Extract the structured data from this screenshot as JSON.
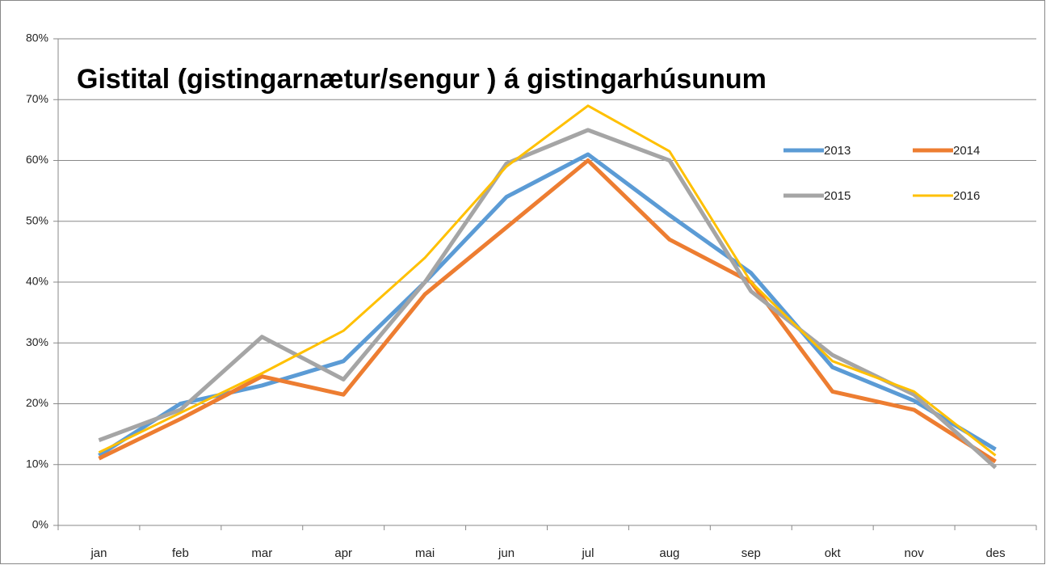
{
  "chart_data": {
    "type": "line",
    "title": "Gistital (gistingarnætur/sengur ) á gistingarhúsunum",
    "categories": [
      "jan",
      "feb",
      "mar",
      "apr",
      "mai",
      "jun",
      "jul",
      "aug",
      "sep",
      "okt",
      "nov",
      "des"
    ],
    "series": [
      {
        "name": "2013",
        "color": "#5b9bd5",
        "values": [
          11.5,
          20,
          23,
          27,
          40,
          54,
          61,
          51,
          41.5,
          26,
          20.5,
          12.5
        ]
      },
      {
        "name": "2014",
        "color": "#ed7d31",
        "values": [
          11,
          17.5,
          24.5,
          21.5,
          38,
          49,
          60,
          47,
          40,
          22,
          19,
          10.5
        ]
      },
      {
        "name": "2015",
        "color": "#a5a5a5",
        "values": [
          14,
          19,
          31,
          24,
          40,
          59.5,
          65,
          60,
          38.5,
          28,
          21.5,
          9.5
        ]
      },
      {
        "name": "2016",
        "color": "#ffc000",
        "values": [
          12,
          18.5,
          25,
          32,
          44,
          59,
          69,
          61.5,
          40,
          27,
          22,
          11.5
        ]
      }
    ],
    "ylim": [
      0,
      80
    ],
    "yticks": [
      {
        "value": 0,
        "label": "0%"
      },
      {
        "value": 10,
        "label": "10%"
      },
      {
        "value": 20,
        "label": "20%"
      },
      {
        "value": 30,
        "label": "30%"
      },
      {
        "value": 40,
        "label": "40%"
      },
      {
        "value": 50,
        "label": "50%"
      },
      {
        "value": 60,
        "label": "60%"
      },
      {
        "value": 70,
        "label": "70%"
      },
      {
        "value": 80,
        "label": "80%"
      }
    ],
    "grid": true,
    "legend": "upper right"
  }
}
